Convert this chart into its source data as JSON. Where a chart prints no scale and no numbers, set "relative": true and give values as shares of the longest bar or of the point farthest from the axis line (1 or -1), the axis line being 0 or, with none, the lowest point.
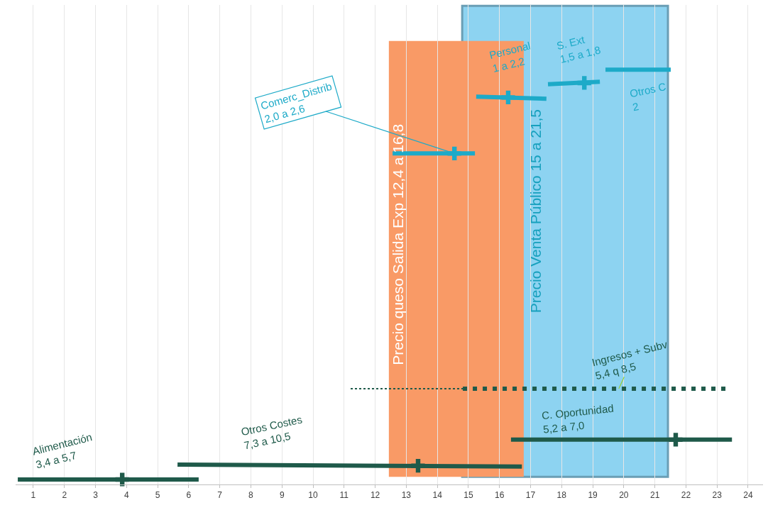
{
  "chart_data": {
    "type": "line",
    "relative": true,
    "line_style": "solid",
    "grid": "x",
    "xlim": [
      0.43,
      24.48
    ],
    "xticks": [
      1,
      2,
      3,
      4,
      5,
      6,
      7,
      8,
      9,
      10,
      11,
      12,
      13,
      14,
      15,
      16,
      17,
      18,
      19,
      20,
      21,
      22,
      23,
      24
    ],
    "bands": [
      {
        "axis": "x",
        "from": 14.8,
        "to": 21.42,
        "label": "Precio Venta Público 15 a 21,5",
        "color": "#8dd3f1"
      },
      {
        "axis": "x",
        "from": 12.44,
        "to": 16.78,
        "label": "Precio queso Salida Exp 12,4 a 16,8",
        "color": "#f99a66"
      }
    ],
    "series": [
      {
        "color": "#1f5a4a",
        "x": [
          0.5,
          6.32
        ],
        "values": [
          0.012,
          0.012
        ]
      },
      {
        "color": "#1f5a4a",
        "x": [
          5.64,
          16.72
        ],
        "values": [
          0.048,
          0.043
        ]
      },
      {
        "color": "#1f5a4a",
        "x": [
          16.37,
          23.48
        ],
        "values": [
          0.108,
          0.108
        ]
      },
      {
        "color": "#1f5a4a",
        "x": [
          11.21,
          14.82
        ],
        "values": [
          0.231,
          0.231
        ],
        "line_style": "dotted"
      },
      {
        "color": "#1f5a4a",
        "x": [
          14.82,
          23.34
        ],
        "values": [
          0.231,
          0.231
        ],
        "line_style": "dashed"
      },
      {
        "color": "#1daac8",
        "x": [
          12.56,
          15.21
        ],
        "values": [
          0.798,
          0.798
        ]
      },
      {
        "color": "#1daac8",
        "x": [
          15.25,
          17.51
        ],
        "values": [
          0.935,
          0.93
        ]
      },
      {
        "color": "#1daac8",
        "x": [
          17.56,
          19.23
        ],
        "values": [
          0.965,
          0.971
        ]
      },
      {
        "color": "#1daac8",
        "x": [
          19.41,
          21.51
        ],
        "values": [
          1,
          1
        ]
      },
      {
        "type": "scatter",
        "marker": "cross",
        "x": [
          3.86,
          13.38,
          21.67,
          14.55,
          16.28,
          18.73
        ],
        "values": [
          0.012,
          0.045,
          0.108,
          0.798,
          0.933,
          0.968
        ],
        "colors": [
          "#1f5a4a",
          "#1f5a4a",
          "#1f5a4a",
          "#1daac8",
          "#1daac8",
          "#1daac8"
        ]
      }
    ],
    "annotations": [
      "Alimentación\n3,4 a 5,7",
      "Otros Costes\n7,3 a 10,5",
      "C. Oportunidad\n5,2 a 7,0",
      {
        "text": "Ingresos + Subv\n5,4 q 8,5",
        "x": 19.84,
        "y": 0.231
      },
      {
        "text": "Comerc_Distrib\n2,0 a 2,6",
        "x": 14.55,
        "y": 0.798
      },
      "Personal\n1 a 2,2",
      "S. Ext\n1,5 a 1,8",
      "Otros C\n2"
    ]
  }
}
